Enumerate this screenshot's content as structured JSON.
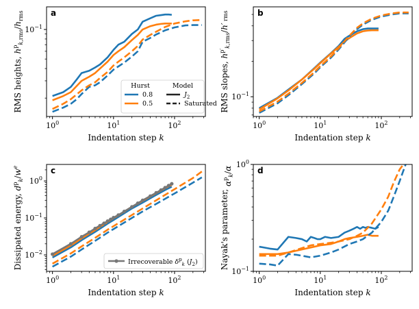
{
  "chart_data": [
    {
      "type": "line",
      "panel": "a",
      "xlabel": "Indentation step k",
      "ylabel": "RMS heights, h^p_{k,rms}/h_rms",
      "xscale": "log",
      "yscale": "log",
      "xlim": [
        0.8,
        320
      ],
      "ylim": [
        0.013,
        0.17
      ],
      "xticks": [
        {
          "v": 1,
          "label": "10^0"
        },
        {
          "v": 10,
          "label": "10^1"
        },
        {
          "v": 100,
          "label": "10^2"
        }
      ],
      "yticks": [
        {
          "v": 0.1,
          "label": "10^-1"
        }
      ],
      "legend": {
        "placement": "lower right",
        "hurst_title": "Hurst",
        "model_title": "Model",
        "hurst_entries": [
          {
            "label": "0.8",
            "color": "#1f77b4"
          },
          {
            "label": "0.5",
            "color": "#ff7f0e"
          }
        ],
        "model_entries": [
          {
            "label": "J2",
            "style": "solid"
          },
          {
            "label": "Saturated",
            "style": "dashed"
          }
        ]
      },
      "series": [
        {
          "hurst": "0.8",
          "model": "J2",
          "color": "#1f77b4",
          "dashed": false,
          "x": [
            1,
            1.5,
            2,
            2.5,
            3,
            4,
            5,
            6,
            8,
            10,
            12,
            15,
            20,
            25,
            30,
            40,
            50,
            60,
            70,
            80,
            90
          ],
          "y": [
            0.021,
            0.023,
            0.026,
            0.031,
            0.036,
            0.038,
            0.041,
            0.044,
            0.052,
            0.062,
            0.07,
            0.075,
            0.09,
            0.1,
            0.12,
            0.13,
            0.138,
            0.14,
            0.142,
            0.142,
            0.141
          ]
        },
        {
          "hurst": "0.5",
          "model": "J2",
          "color": "#ff7f0e",
          "dashed": false,
          "x": [
            1,
            1.5,
            2,
            3,
            4,
            5,
            6,
            8,
            10,
            12,
            15,
            20,
            25,
            30,
            40,
            50,
            60,
            70,
            80,
            90
          ],
          "y": [
            0.019,
            0.021,
            0.023,
            0.03,
            0.033,
            0.036,
            0.04,
            0.047,
            0.055,
            0.06,
            0.066,
            0.078,
            0.088,
            0.1,
            0.108,
            0.112,
            0.114,
            0.115,
            0.115,
            0.115
          ]
        },
        {
          "hurst": "0.8",
          "model": "Saturated",
          "color": "#1f77b4",
          "dashed": true,
          "x": [
            1,
            1.5,
            2,
            2.5,
            3,
            4,
            5,
            6,
            8,
            10,
            12,
            15,
            20,
            25,
            30,
            40,
            50,
            70,
            100,
            150,
            200,
            280
          ],
          "y": [
            0.0145,
            0.016,
            0.0175,
            0.0195,
            0.022,
            0.026,
            0.027,
            0.029,
            0.034,
            0.039,
            0.042,
            0.046,
            0.053,
            0.06,
            0.075,
            0.082,
            0.089,
            0.098,
            0.105,
            0.11,
            0.111,
            0.111
          ]
        },
        {
          "hurst": "0.5",
          "model": "Saturated",
          "color": "#ff7f0e",
          "dashed": true,
          "x": [
            1,
            1.5,
            2,
            3,
            4,
            5,
            6,
            8,
            10,
            12,
            15,
            20,
            25,
            30,
            40,
            50,
            70,
            100,
            150,
            200,
            280
          ],
          "y": [
            0.0155,
            0.0175,
            0.0195,
            0.024,
            0.027,
            0.029,
            0.032,
            0.037,
            0.043,
            0.047,
            0.052,
            0.06,
            0.068,
            0.079,
            0.088,
            0.095,
            0.106,
            0.115,
            0.121,
            0.124,
            0.125
          ]
        }
      ]
    },
    {
      "type": "line",
      "panel": "b",
      "xlabel": "Indentation step k",
      "ylabel": "RMS slopes, h^{p'}_{k,rms}/h'_rms",
      "xscale": "log",
      "yscale": "log",
      "xlim": [
        0.8,
        320
      ],
      "ylim": [
        0.068,
        0.58
      ],
      "xticks": [
        {
          "v": 1,
          "label": "10^0"
        },
        {
          "v": 10,
          "label": "10^1"
        },
        {
          "v": 100,
          "label": "10^2"
        }
      ],
      "yticks": [
        {
          "v": 0.1,
          "label": "10^-1"
        }
      ],
      "series": [
        {
          "hurst": "0.8",
          "model": "J2",
          "color": "#1f77b4",
          "dashed": false,
          "x": [
            1,
            2,
            3,
            5,
            8,
            10,
            15,
            20,
            25,
            30,
            40,
            50,
            60,
            70,
            80,
            90
          ],
          "y": [
            0.08,
            0.098,
            0.115,
            0.14,
            0.175,
            0.195,
            0.235,
            0.27,
            0.31,
            0.33,
            0.36,
            0.375,
            0.38,
            0.38,
            0.38,
            0.38
          ]
        },
        {
          "hurst": "0.5",
          "model": "J2",
          "color": "#ff7f0e",
          "dashed": false,
          "x": [
            1,
            2,
            3,
            5,
            8,
            10,
            15,
            20,
            25,
            30,
            40,
            50,
            60,
            70,
            80,
            90
          ],
          "y": [
            0.078,
            0.097,
            0.113,
            0.14,
            0.173,
            0.193,
            0.233,
            0.265,
            0.295,
            0.315,
            0.345,
            0.36,
            0.365,
            0.367,
            0.367,
            0.367
          ]
        },
        {
          "hurst": "0.8",
          "model": "Saturated",
          "color": "#1f77b4",
          "dashed": true,
          "x": [
            1,
            2,
            3,
            5,
            8,
            10,
            15,
            20,
            25,
            30,
            40,
            50,
            70,
            100,
            150,
            200,
            280
          ],
          "y": [
            0.073,
            0.088,
            0.103,
            0.128,
            0.158,
            0.178,
            0.215,
            0.252,
            0.29,
            0.325,
            0.375,
            0.41,
            0.45,
            0.48,
            0.5,
            0.51,
            0.51
          ]
        },
        {
          "hurst": "0.5",
          "model": "Saturated",
          "color": "#ff7f0e",
          "dashed": true,
          "x": [
            1,
            2,
            3,
            5,
            8,
            10,
            15,
            20,
            25,
            30,
            40,
            50,
            70,
            100,
            150,
            200,
            280
          ],
          "y": [
            0.075,
            0.091,
            0.106,
            0.131,
            0.162,
            0.182,
            0.22,
            0.258,
            0.296,
            0.33,
            0.385,
            0.42,
            0.46,
            0.49,
            0.51,
            0.52,
            0.52
          ]
        }
      ]
    },
    {
      "type": "line",
      "panel": "c",
      "xlabel": "Indentation step k",
      "ylabel": "Dissipated energy, d^p_k/w^e",
      "xscale": "log",
      "yscale": "log",
      "xlim": [
        0.8,
        320
      ],
      "ylim": [
        0.0036,
        2.8
      ],
      "xticks": [
        {
          "v": 1,
          "label": "10^0"
        },
        {
          "v": 10,
          "label": "10^1"
        },
        {
          "v": 100,
          "label": "10^2"
        }
      ],
      "yticks": [
        {
          "v": 0.01,
          "label": "10^-2"
        },
        {
          "v": 0.1,
          "label": "10^-1"
        },
        {
          "v": 1,
          "label": "10^0"
        }
      ],
      "legend": {
        "placement": "lower right",
        "label": "Irrecoverable δ^p_k (J2)",
        "color": "#777777"
      },
      "series": [
        {
          "hurst": "0.8",
          "model": "J2",
          "color": "#1f77b4",
          "dashed": false,
          "x": [
            1,
            2,
            3,
            5,
            8,
            10,
            20,
            30,
            50,
            70,
            90
          ],
          "y": [
            0.0085,
            0.016,
            0.025,
            0.042,
            0.07,
            0.088,
            0.18,
            0.26,
            0.42,
            0.57,
            0.7
          ]
        },
        {
          "hurst": "0.5",
          "model": "J2",
          "color": "#ff7f0e",
          "dashed": false,
          "x": [
            1,
            2,
            3,
            5,
            8,
            10,
            20,
            30,
            50,
            70,
            90
          ],
          "y": [
            0.0095,
            0.018,
            0.028,
            0.047,
            0.078,
            0.098,
            0.2,
            0.29,
            0.47,
            0.64,
            0.78
          ]
        },
        {
          "hurst": "0.8",
          "model": "Saturated",
          "color": "#1f77b4",
          "dashed": true,
          "x": [
            1,
            2,
            3,
            5,
            8,
            10,
            20,
            30,
            50,
            100,
            150,
            200,
            280
          ],
          "y": [
            0.0048,
            0.009,
            0.014,
            0.024,
            0.04,
            0.05,
            0.1,
            0.15,
            0.24,
            0.46,
            0.68,
            0.9,
            1.25
          ]
        },
        {
          "hurst": "0.5",
          "model": "Saturated",
          "color": "#ff7f0e",
          "dashed": true,
          "x": [
            1,
            2,
            3,
            5,
            8,
            10,
            20,
            30,
            50,
            100,
            150,
            200,
            280
          ],
          "y": [
            0.0058,
            0.011,
            0.017,
            0.029,
            0.048,
            0.06,
            0.12,
            0.18,
            0.3,
            0.6,
            0.9,
            1.2,
            1.8
          ]
        },
        {
          "label": "Irrecoverable (J2)",
          "color": "#777777",
          "dashed": false,
          "markers": true,
          "x": [
            1,
            2,
            3,
            4,
            5,
            6,
            7,
            8,
            9,
            10,
            12,
            15,
            20,
            25,
            30,
            40,
            50,
            60,
            70,
            80,
            90
          ],
          "y": [
            0.0105,
            0.02,
            0.031,
            0.041,
            0.052,
            0.062,
            0.072,
            0.082,
            0.092,
            0.102,
            0.12,
            0.15,
            0.2,
            0.25,
            0.3,
            0.39,
            0.48,
            0.57,
            0.66,
            0.75,
            0.84
          ]
        }
      ]
    },
    {
      "type": "line",
      "panel": "d",
      "xlabel": "Indentation step k",
      "ylabel": "Nayak's parameter, α^p_k/α",
      "xscale": "log",
      "yscale": "log",
      "xlim": [
        0.8,
        320
      ],
      "ylim": [
        0.1,
        1.0
      ],
      "xticks": [
        {
          "v": 1,
          "label": "10^0"
        },
        {
          "v": 10,
          "label": "10^1"
        },
        {
          "v": 100,
          "label": "10^2"
        }
      ],
      "yticks": [
        {
          "v": 0.1,
          "label": "10^-1"
        },
        {
          "v": 1,
          "label": "10^0"
        }
      ],
      "series": [
        {
          "hurst": "0.8",
          "model": "J2",
          "color": "#1f77b4",
          "dashed": false,
          "x": [
            1,
            1.5,
            2,
            3,
            4,
            5,
            6,
            7,
            8,
            9,
            10,
            12,
            15,
            20,
            25,
            30,
            35,
            40,
            45,
            50,
            55,
            60,
            70,
            80,
            90
          ],
          "y": [
            0.17,
            0.163,
            0.16,
            0.21,
            0.205,
            0.2,
            0.19,
            0.21,
            0.205,
            0.2,
            0.2,
            0.21,
            0.205,
            0.21,
            0.23,
            0.24,
            0.25,
            0.26,
            0.25,
            0.26,
            0.255,
            0.26,
            0.255,
            0.25,
            0.26
          ]
        },
        {
          "hurst": "0.5",
          "model": "J2",
          "color": "#ff7f0e",
          "dashed": false,
          "x": [
            1,
            1.5,
            2,
            3,
            5,
            8,
            10,
            15,
            20,
            25,
            30,
            40,
            50,
            60,
            70,
            80,
            90
          ],
          "y": [
            0.145,
            0.145,
            0.145,
            0.15,
            0.16,
            0.17,
            0.175,
            0.18,
            0.19,
            0.2,
            0.205,
            0.21,
            0.215,
            0.22,
            0.215,
            0.215,
            0.215
          ]
        },
        {
          "hurst": "0.8",
          "model": "Saturated",
          "color": "#1f77b4",
          "dashed": true,
          "x": [
            1,
            1.5,
            2,
            3,
            4,
            5,
            7,
            10,
            15,
            20,
            30,
            40,
            50,
            70,
            100,
            130,
            160,
            200,
            250
          ],
          "y": [
            0.118,
            0.116,
            0.113,
            0.145,
            0.143,
            0.14,
            0.135,
            0.14,
            0.15,
            0.16,
            0.18,
            0.19,
            0.2,
            0.23,
            0.29,
            0.37,
            0.5,
            0.7,
            1.0
          ]
        },
        {
          "hurst": "0.5",
          "model": "Saturated",
          "color": "#ff7f0e",
          "dashed": true,
          "x": [
            1,
            2,
            3,
            5,
            7,
            10,
            15,
            20,
            30,
            40,
            50,
            70,
            100,
            130,
            160,
            200,
            230
          ],
          "y": [
            0.14,
            0.14,
            0.15,
            0.165,
            0.175,
            0.18,
            0.185,
            0.19,
            0.2,
            0.215,
            0.23,
            0.28,
            0.38,
            0.5,
            0.68,
            0.9,
            1.0
          ]
        }
      ]
    }
  ],
  "colors": {
    "hurst_08": "#1f77b4",
    "hurst_05": "#ff7f0e",
    "irrecoverable": "#777777"
  }
}
